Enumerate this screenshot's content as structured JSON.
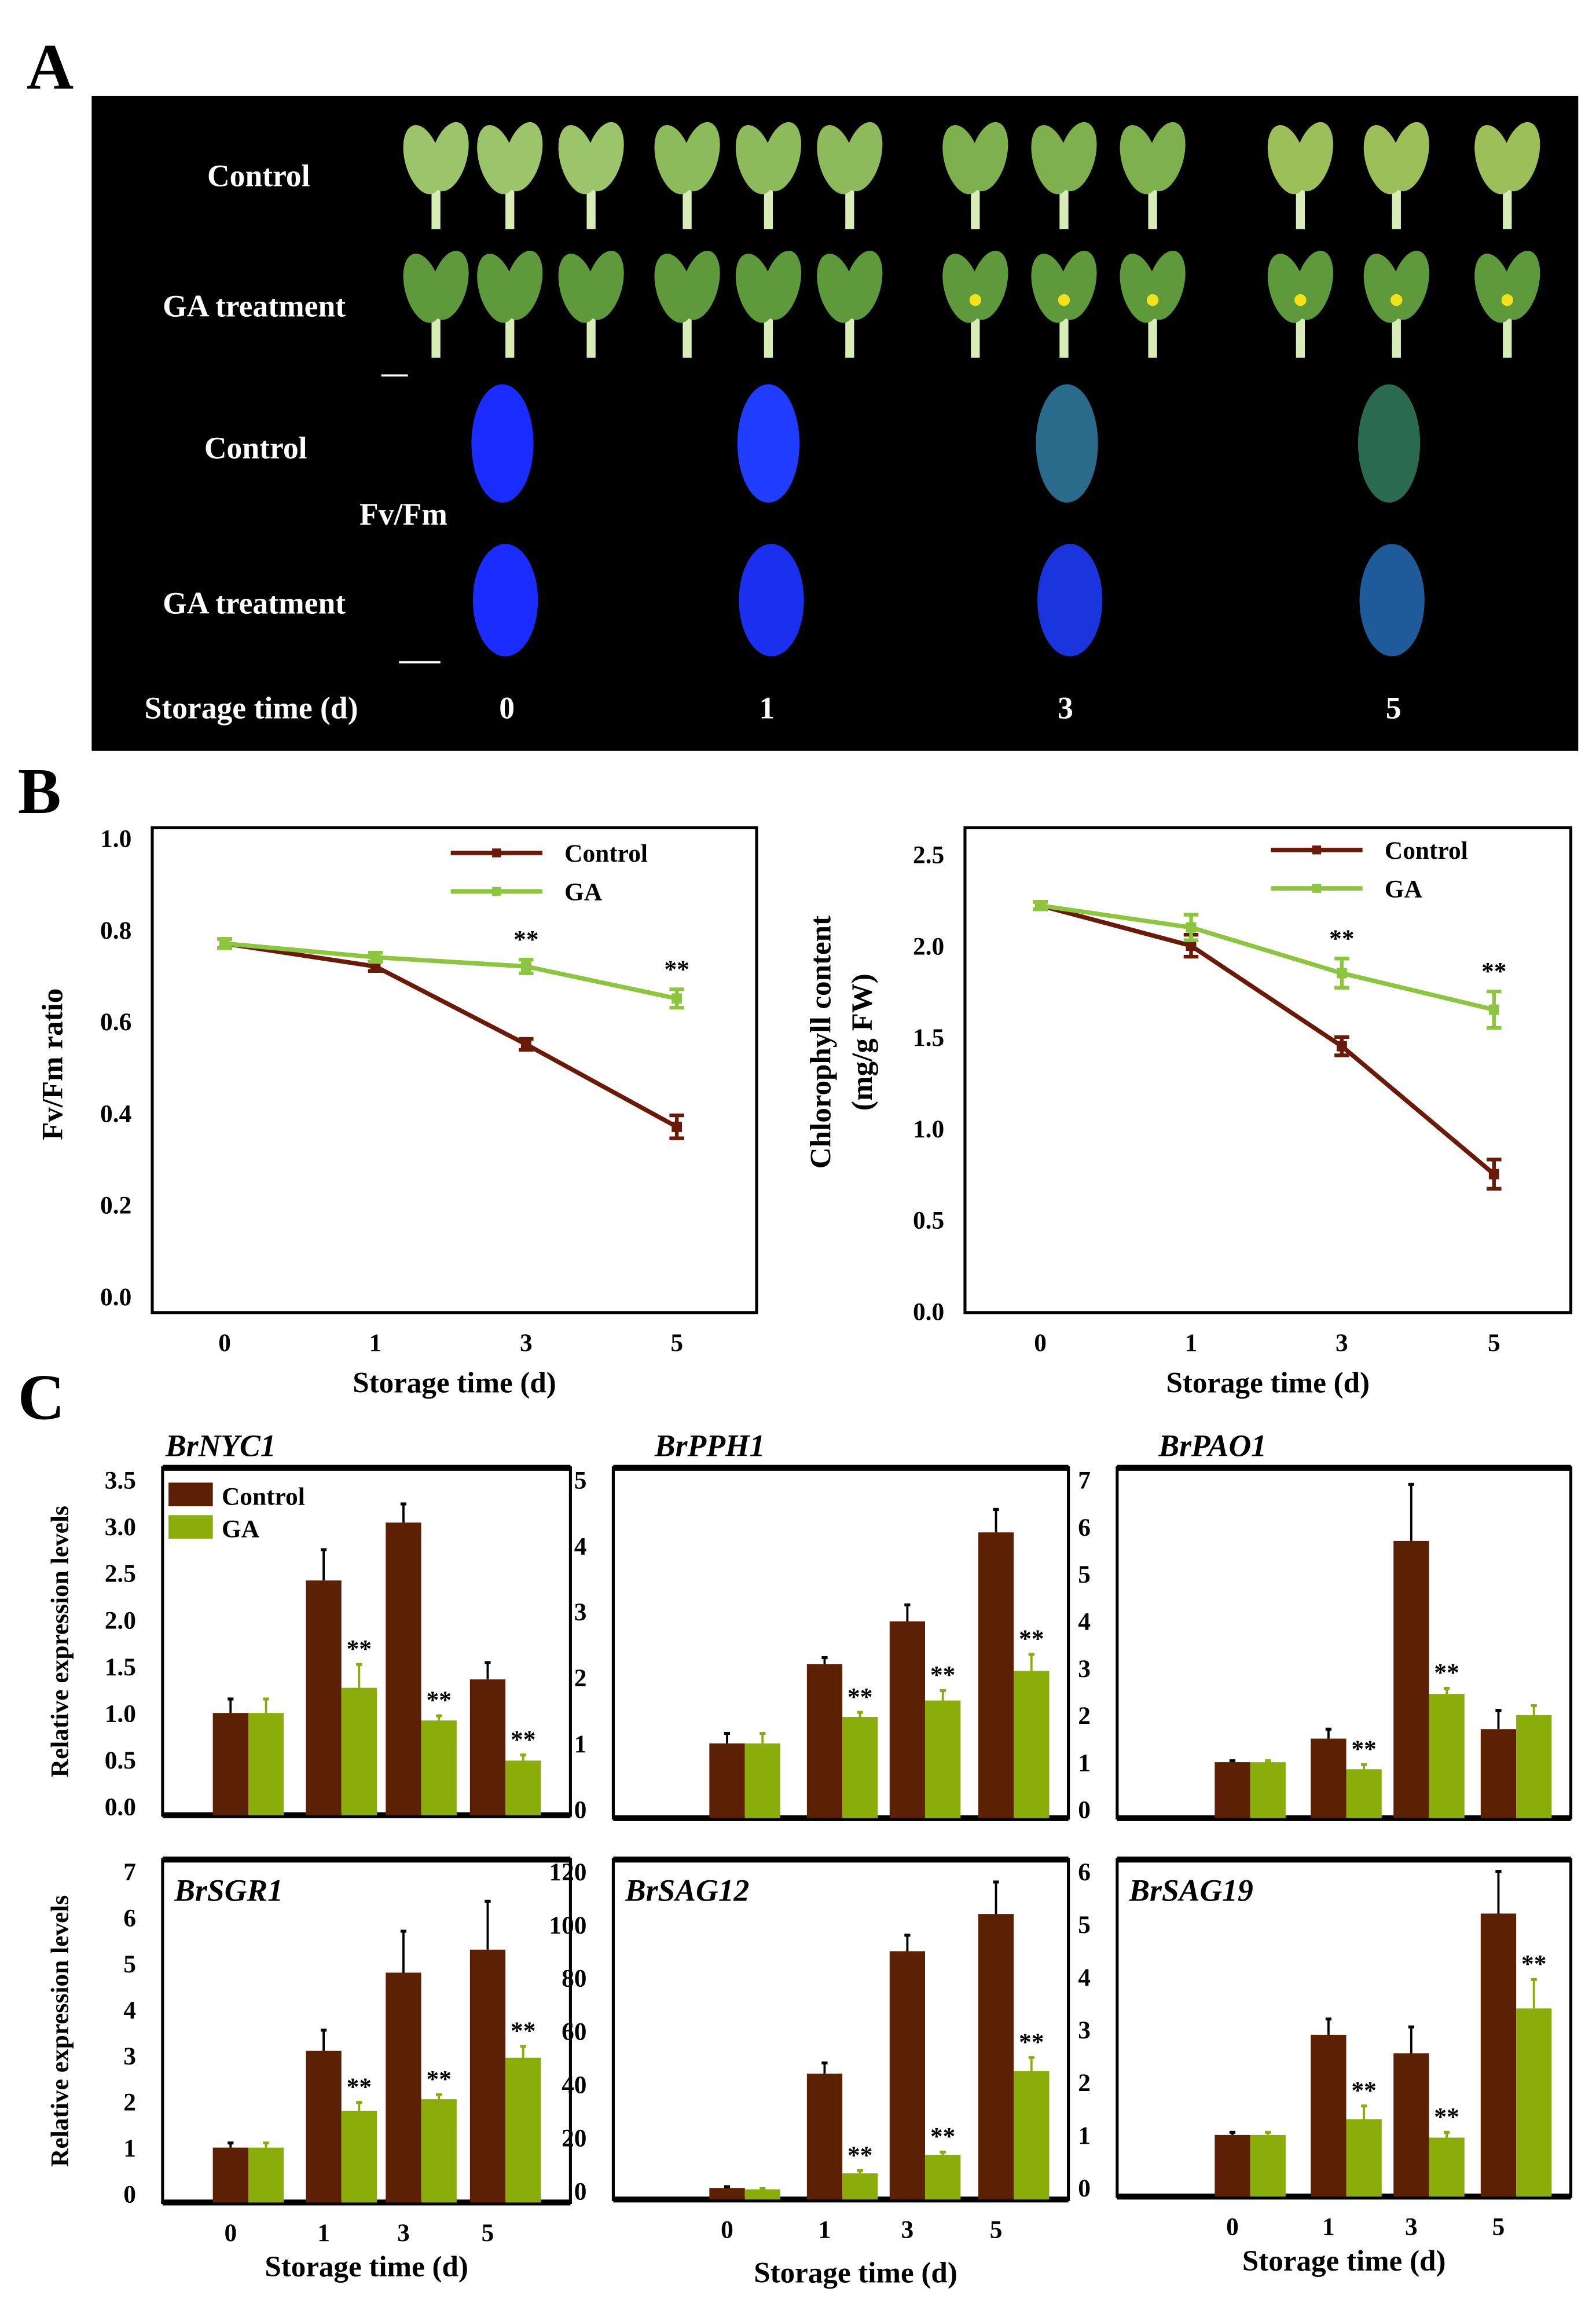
{
  "panels": {
    "a": "A",
    "b": "B",
    "c": "C"
  },
  "panel_a": {
    "row_labels": [
      "Control",
      "GA treatment",
      "Control",
      "GA treatment"
    ],
    "fvfm_label": "Fv/Fm",
    "storage_label": "Storage time (d)",
    "days": [
      "0",
      "1",
      "3",
      "5"
    ]
  },
  "colors": {
    "control": "#5c2004",
    "ga": "#8aad0a",
    "control_line": "#6b1a08",
    "ga_line": "#8cc63f"
  },
  "chart_data": [
    {
      "type": "line",
      "id": "fvfm",
      "xlabel": "Storage time (d)",
      "ylabel": "Fv/Fm ratio",
      "x": [
        "0",
        "1",
        "3",
        "5"
      ],
      "ylim": [
        0,
        1.0
      ],
      "yticks": [
        "0.0",
        "0.2",
        "0.4",
        "0.6",
        "0.8",
        "1.0"
      ],
      "legend": "top-right",
      "series": [
        {
          "name": "Control",
          "values": [
            0.77,
            0.72,
            0.55,
            0.37
          ],
          "errors": [
            0.01,
            0.01,
            0.012,
            0.025
          ]
        },
        {
          "name": "GA",
          "values": [
            0.77,
            0.74,
            0.72,
            0.65
          ],
          "errors": [
            0.01,
            0.01,
            0.015,
            0.02
          ],
          "significance": [
            "",
            "",
            "**",
            "**"
          ]
        }
      ]
    },
    {
      "type": "line",
      "id": "chlorophyll",
      "xlabel": "Storage time (d)",
      "ylabel": [
        "Chlorophyll content",
        "(mg/g FW)"
      ],
      "x": [
        "0",
        "1",
        "3",
        "5"
      ],
      "ylim": [
        0,
        2.5
      ],
      "yticks": [
        "0.0",
        "0.5",
        "1.0",
        "1.5",
        "2.0",
        "2.5"
      ],
      "legend": "top-right",
      "series": [
        {
          "name": "Control",
          "values": [
            2.22,
            2.0,
            1.45,
            0.75
          ],
          "errors": [
            0.02,
            0.06,
            0.05,
            0.08
          ]
        },
        {
          "name": "GA",
          "values": [
            2.22,
            2.1,
            1.85,
            1.65
          ],
          "errors": [
            0.02,
            0.07,
            0.08,
            0.1
          ],
          "significance": [
            "",
            "",
            "**",
            "**"
          ]
        }
      ]
    },
    {
      "type": "bar",
      "id": "BrNYC1",
      "title": "BrNYC1",
      "categories": [
        "0",
        "1",
        "3",
        "5"
      ],
      "ylim": [
        0,
        3.5
      ],
      "yticks": [
        "0.0",
        "0.5",
        "1.0",
        "1.5",
        "2.0",
        "2.5",
        "3.0",
        "3.5"
      ],
      "ylabel": "Relative expression levels",
      "xlabel": "",
      "legend": "top-left",
      "series": [
        {
          "name": "Control",
          "values": [
            1.0,
            2.42,
            3.04,
            1.36
          ],
          "errors": [
            0.15,
            0.33,
            0.2,
            0.18
          ]
        },
        {
          "name": "GA",
          "values": [
            1.0,
            1.27,
            0.92,
            0.49
          ],
          "errors": [
            0.15,
            0.25,
            0.05,
            0.06
          ],
          "significance": [
            "",
            "**",
            "**",
            "**"
          ]
        }
      ]
    },
    {
      "type": "bar",
      "id": "BrPPH1",
      "title": "BrPPH1",
      "categories": [
        "0",
        "1",
        "3",
        "5"
      ],
      "ylim": [
        0,
        5
      ],
      "yticks": [
        "0",
        "1",
        "2",
        "3",
        "4",
        "5"
      ],
      "ylabel": "",
      "xlabel": "",
      "series": [
        {
          "name": "Control",
          "values": [
            1.0,
            2.2,
            2.85,
            4.2
          ],
          "errors": [
            0.15,
            0.1,
            0.25,
            0.35
          ]
        },
        {
          "name": "GA",
          "values": [
            1.0,
            1.4,
            1.65,
            2.1
          ],
          "errors": [
            0.15,
            0.07,
            0.15,
            0.25
          ],
          "significance": [
            "",
            "**",
            "**",
            "**"
          ]
        }
      ]
    },
    {
      "type": "bar",
      "id": "BrPAO1",
      "title": "BrPAO1",
      "categories": [
        "0",
        "1",
        "3",
        "5"
      ],
      "ylim": [
        0,
        7
      ],
      "yticks": [
        "0",
        "1",
        "2",
        "3",
        "4",
        "5",
        "6",
        "7"
      ],
      "ylabel": "",
      "xlabel": "",
      "series": [
        {
          "name": "Control",
          "values": [
            1.0,
            1.5,
            5.7,
            1.7
          ],
          "errors": [
            0.03,
            0.2,
            1.2,
            0.4
          ]
        },
        {
          "name": "GA",
          "values": [
            1.0,
            0.85,
            2.45,
            2.0
          ],
          "errors": [
            0.03,
            0.1,
            0.12,
            0.2
          ],
          "significance": [
            "",
            "**",
            "**",
            ""
          ]
        }
      ]
    },
    {
      "type": "bar",
      "id": "BrSGR1",
      "title": "BrSGR1",
      "categories": [
        "0",
        "1",
        "3",
        "5"
      ],
      "ylim": [
        0,
        7
      ],
      "yticks": [
        "0",
        "1",
        "2",
        "3",
        "4",
        "5",
        "6",
        "7"
      ],
      "ylabel": "Relative expression levels",
      "xlabel": "Storage time (d)",
      "series": [
        {
          "name": "Control",
          "values": [
            1.0,
            3.1,
            4.8,
            5.3
          ],
          "errors": [
            0.1,
            0.45,
            0.9,
            1.05
          ]
        },
        {
          "name": "GA",
          "values": [
            1.0,
            1.8,
            2.05,
            2.95
          ],
          "errors": [
            0.1,
            0.18,
            0.1,
            0.25
          ],
          "significance": [
            "",
            "**",
            "**",
            "**"
          ]
        }
      ]
    },
    {
      "type": "bar",
      "id": "BrSAG12",
      "title": "BrSAG12",
      "categories": [
        "0",
        "1",
        "3",
        "5"
      ],
      "ylim": [
        0,
        120
      ],
      "yticks": [
        "0",
        "20",
        "40",
        "60",
        "80",
        "100",
        "120"
      ],
      "ylabel": "",
      "xlabel": "Storage time (d)",
      "series": [
        {
          "name": "Control",
          "values": [
            1,
            44,
            90,
            104
          ],
          "errors": [
            0.5,
            4,
            6,
            12
          ]
        },
        {
          "name": "GA",
          "values": [
            0.5,
            6.5,
            13.5,
            45
          ],
          "errors": [
            0.3,
            1,
            1,
            5
          ],
          "significance": [
            "",
            "**",
            "**",
            "**"
          ]
        }
      ]
    },
    {
      "type": "bar",
      "id": "BrSAG19",
      "title": "BrSAG19",
      "categories": [
        "0",
        "1",
        "3",
        "5"
      ],
      "ylim": [
        0,
        6
      ],
      "yticks": [
        "0",
        "1",
        "2",
        "3",
        "4",
        "5",
        "6"
      ],
      "ylabel": "",
      "xlabel": "Storage time (d)",
      "series": [
        {
          "name": "Control",
          "values": [
            1.0,
            2.9,
            2.55,
            5.2
          ],
          "errors": [
            0.05,
            0.3,
            0.5,
            0.8
          ]
        },
        {
          "name": "GA",
          "values": [
            1.0,
            1.3,
            0.95,
            3.4
          ],
          "errors": [
            0.05,
            0.25,
            0.1,
            0.55
          ],
          "significance": [
            "",
            "**",
            "**",
            "**"
          ]
        }
      ]
    }
  ]
}
